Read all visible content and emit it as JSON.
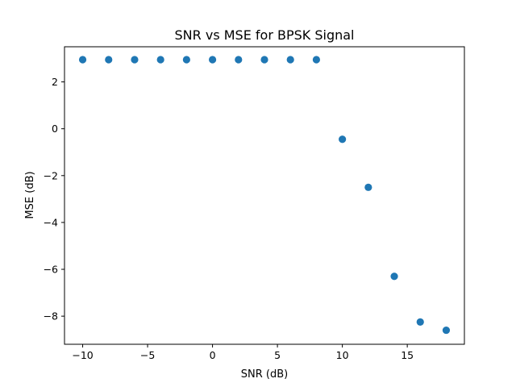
{
  "chart_data": {
    "type": "scatter",
    "title": "SNR vs MSE for BPSK Signal",
    "xlabel": "SNR (dB)",
    "ylabel": "MSE (dB)",
    "xlim": [
      -11.4,
      19.4
    ],
    "ylim": [
      -9.2,
      3.5
    ],
    "xticks": [
      -10,
      -5,
      0,
      5,
      10,
      15
    ],
    "xtick_labels": [
      "−10",
      "−5",
      "0",
      "5",
      "10",
      "15"
    ],
    "yticks": [
      2,
      0,
      -2,
      -4,
      -6,
      -8
    ],
    "ytick_labels": [
      "2",
      "0",
      "−2",
      "−4",
      "−6",
      "−8"
    ],
    "grid": false,
    "marker_color": "#1f77b4",
    "x": [
      -10,
      -8,
      -6,
      -4,
      -2,
      0,
      2,
      4,
      6,
      8,
      10,
      12,
      14,
      16,
      18
    ],
    "y": [
      2.95,
      2.95,
      2.95,
      2.95,
      2.95,
      2.95,
      2.95,
      2.95,
      2.95,
      2.95,
      -0.45,
      -2.5,
      -6.3,
      -8.25,
      -8.6
    ]
  }
}
